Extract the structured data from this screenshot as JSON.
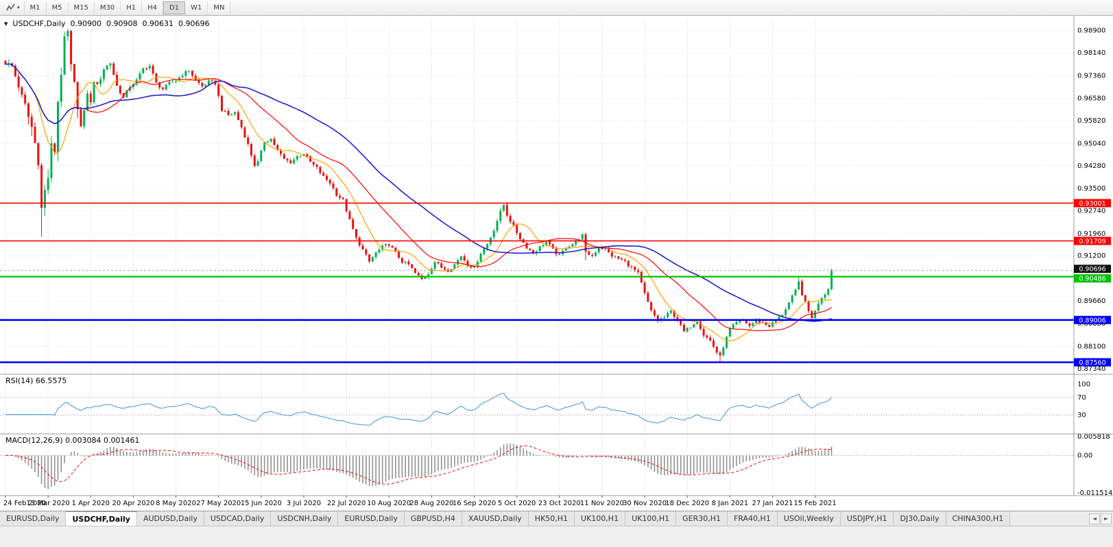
{
  "toolbar": {
    "timeframes": [
      "M1",
      "M5",
      "M15",
      "M30",
      "H1",
      "H4",
      "D1",
      "W1",
      "MN"
    ],
    "active_timeframe": "D1",
    "chart_icon": "line-chart-icon",
    "caret_glyph": "▾"
  },
  "header": {
    "caret_glyph": "▼",
    "symbol": "USDCHF,Daily",
    "open": "0.90900",
    "high": "0.90908",
    "low": "0.90631",
    "close": "0.90696"
  },
  "indicators": {
    "rsi_label": "RSI(14) 66.5575",
    "macd_label": "MACD(12,26,9) 0.003084 0.001461"
  },
  "tabs": {
    "items": [
      "EURUSD,Daily",
      "USDCHF,Daily",
      "AUDUSD,Daily",
      "USDCAD,Daily",
      "USDCNH,Daily",
      "EURUSD,Daily",
      "GBPUSD,H4",
      "XAUUSD,Daily",
      "HK50,H1",
      "UK100,H1",
      "UK100,H1",
      "GER30,H1",
      "FRA40,H1",
      "USOil,Weekly",
      "USDJPY,H1",
      "DJ30,Daily",
      "CHINA300,H1"
    ],
    "active_index": 1,
    "scroll_left_glyph": "◄",
    "scroll_right_glyph": "►"
  },
  "chart_data": {
    "type": "candlestick",
    "symbol": "USDCHF",
    "timeframe": "Daily",
    "ohlc_current": {
      "open": 0.909,
      "high": 0.90908,
      "low": 0.90631,
      "close": 0.90696
    },
    "ylim": [
      0.8715,
      0.9922
    ],
    "price_axis_ticks": [
      0.989,
      0.9814,
      0.9736,
      0.9658,
      0.9582,
      0.9504,
      0.9428,
      0.935,
      0.9274,
      0.9196,
      0.912,
      0.9042,
      0.8966,
      0.8888,
      0.881,
      0.8734
    ],
    "x_ticks": [
      "24 Feb 2020",
      "13 Mar 2020",
      "1 Apr 2020",
      "20 Apr 2020",
      "8 May 2020",
      "27 May 2020",
      "15 Jun 2020",
      "3 Jul 2020",
      "22 Jul 2020",
      "10 Aug 2020",
      "28 Aug 2020",
      "16 Sep 2020",
      "5 Oct 2020",
      "23 Oct 2020",
      "11 Nov 2020",
      "30 Nov 2020",
      "18 Dec 2020",
      "8 Jan 2021",
      "27 Jan 2021",
      "15 Feb 2021"
    ],
    "bars_per_tick": 13,
    "bar_count": 253,
    "bar_spacing": 4.78,
    "first_bar_x": 8,
    "last_close": 0.90696,
    "up_color": "#00b050",
    "down_color": "#e81010",
    "price_anchors": [
      [
        0,
        0.978
      ],
      [
        2,
        0.9768
      ],
      [
        4,
        0.97
      ],
      [
        6,
        0.963
      ],
      [
        8,
        0.956
      ],
      [
        10,
        0.945
      ],
      [
        11,
        0.928
      ],
      [
        12,
        0.934
      ],
      [
        13,
        0.939
      ],
      [
        14,
        0.949
      ],
      [
        15,
        0.948
      ],
      [
        16,
        0.965
      ],
      [
        17,
        0.975
      ],
      [
        18,
        0.985
      ],
      [
        19,
        0.988
      ],
      [
        20,
        0.976
      ],
      [
        21,
        0.97
      ],
      [
        22,
        0.964
      ],
      [
        23,
        0.956
      ],
      [
        24,
        0.961
      ],
      [
        25,
        0.968
      ],
      [
        26,
        0.964
      ],
      [
        27,
        0.972
      ],
      [
        28,
        0.97
      ],
      [
        30,
        0.976
      ],
      [
        32,
        0.978
      ],
      [
        34,
        0.97
      ],
      [
        36,
        0.966
      ],
      [
        38,
        0.97
      ],
      [
        40,
        0.972
      ],
      [
        42,
        0.976
      ],
      [
        44,
        0.977
      ],
      [
        46,
        0.971
      ],
      [
        48,
        0.969
      ],
      [
        50,
        0.971
      ],
      [
        52,
        0.972
      ],
      [
        54,
        0.974
      ],
      [
        56,
        0.9755
      ],
      [
        58,
        0.972
      ],
      [
        60,
        0.97
      ],
      [
        62,
        0.9715
      ],
      [
        64,
        0.971
      ],
      [
        66,
        0.962
      ],
      [
        68,
        0.96
      ],
      [
        70,
        0.961
      ],
      [
        72,
        0.956
      ],
      [
        74,
        0.95
      ],
      [
        76,
        0.943
      ],
      [
        77,
        0.944
      ],
      [
        79,
        0.951
      ],
      [
        81,
        0.952
      ],
      [
        83,
        0.948
      ],
      [
        85,
        0.945
      ],
      [
        87,
        0.944
      ],
      [
        89,
        0.946
      ],
      [
        91,
        0.947
      ],
      [
        93,
        0.944
      ],
      [
        95,
        0.942
      ],
      [
        97,
        0.939
      ],
      [
        99,
        0.937
      ],
      [
        101,
        0.933
      ],
      [
        103,
        0.931
      ],
      [
        105,
        0.924
      ],
      [
        107,
        0.918
      ],
      [
        109,
        0.914
      ],
      [
        111,
        0.91
      ],
      [
        113,
        0.913
      ],
      [
        115,
        0.915
      ],
      [
        117,
        0.916
      ],
      [
        119,
        0.913
      ],
      [
        121,
        0.91
      ],
      [
        123,
        0.909
      ],
      [
        125,
        0.906
      ],
      [
        127,
        0.904
      ],
      [
        129,
        0.906
      ],
      [
        131,
        0.91
      ],
      [
        133,
        0.908
      ],
      [
        135,
        0.907
      ],
      [
        137,
        0.909
      ],
      [
        139,
        0.912
      ],
      [
        141,
        0.909
      ],
      [
        143,
        0.908
      ],
      [
        145,
        0.913
      ],
      [
        147,
        0.916
      ],
      [
        149,
        0.921
      ],
      [
        151,
        0.927
      ],
      [
        152,
        0.9295
      ],
      [
        153,
        0.926
      ],
      [
        155,
        0.922
      ],
      [
        157,
        0.918
      ],
      [
        159,
        0.915
      ],
      [
        161,
        0.913
      ],
      [
        163,
        0.915
      ],
      [
        165,
        0.917
      ],
      [
        167,
        0.914
      ],
      [
        169,
        0.912
      ],
      [
        171,
        0.915
      ],
      [
        173,
        0.916
      ],
      [
        175,
        0.918
      ],
      [
        176,
        0.919
      ],
      [
        177,
        0.913
      ],
      [
        179,
        0.912
      ],
      [
        181,
        0.915
      ],
      [
        183,
        0.914
      ],
      [
        185,
        0.912
      ],
      [
        187,
        0.911
      ],
      [
        189,
        0.91
      ],
      [
        191,
        0.908
      ],
      [
        193,
        0.906
      ],
      [
        195,
        0.899
      ],
      [
        197,
        0.893
      ],
      [
        199,
        0.89
      ],
      [
        201,
        0.891
      ],
      [
        203,
        0.893
      ],
      [
        205,
        0.89
      ],
      [
        207,
        0.886
      ],
      [
        209,
        0.888
      ],
      [
        211,
        0.89
      ],
      [
        213,
        0.885
      ],
      [
        215,
        0.883
      ],
      [
        217,
        0.879
      ],
      [
        218,
        0.8775
      ],
      [
        219,
        0.881
      ],
      [
        221,
        0.887
      ],
      [
        223,
        0.889
      ],
      [
        225,
        0.89
      ],
      [
        227,
        0.888
      ],
      [
        229,
        0.89
      ],
      [
        231,
        0.889
      ],
      [
        233,
        0.888
      ],
      [
        235,
        0.89
      ],
      [
        237,
        0.892
      ],
      [
        239,
        0.896
      ],
      [
        241,
        0.9
      ],
      [
        242,
        0.903
      ],
      [
        243,
        0.899
      ],
      [
        244,
        0.896
      ],
      [
        245,
        0.893
      ],
      [
        246,
        0.891
      ],
      [
        247,
        0.893
      ],
      [
        248,
        0.896
      ],
      [
        249,
        0.898
      ],
      [
        250,
        0.899
      ],
      [
        251,
        0.901
      ],
      [
        252,
        0.90696
      ]
    ],
    "wick_highs": {
      "19": 0.9895,
      "152": 0.9296,
      "176": 0.919,
      "242": 0.9046,
      "252": 0.9073
    },
    "wick_lows": {
      "11": 0.9185,
      "177": 0.9105,
      "218": 0.8757
    },
    "moving_averages": [
      {
        "name": "MA-fast",
        "period": 10,
        "color": "#ffa000"
      },
      {
        "name": "MA-medium",
        "period": 25,
        "color": "#ff0000"
      },
      {
        "name": "MA-slow",
        "period": 50,
        "color": "#2020cc"
      }
    ],
    "hlines": [
      {
        "price": 0.93001,
        "label": "0.93001",
        "color": "#ff0000",
        "width": 1.6,
        "tag_dy": 0
      },
      {
        "price": 0.91709,
        "label": "0.91709",
        "color": "#ff0000",
        "width": 1.6,
        "tag_dy": 0
      },
      {
        "price": 0.90486,
        "label": "0.90486",
        "color": "#00c000",
        "width": 2.2,
        "tag_dy": 2.5
      },
      {
        "price": 0.89006,
        "label": "0.89006",
        "color": "#0000ff",
        "width": 2.6,
        "tag_dy": 0
      },
      {
        "price": 0.8756,
        "label": "0.87560",
        "color": "#0000ff",
        "width": 2.6,
        "tag_dy": 0
      }
    ],
    "current_price": {
      "value": 0.90696,
      "label": "0.90696",
      "tag_color": "#111111"
    },
    "rsi": {
      "period": 14,
      "value": 66.5575,
      "levels": [
        100,
        70,
        30
      ],
      "color": "#4a9fd8"
    },
    "macd": {
      "fast": 12,
      "slow": 26,
      "signal": 9,
      "value": 0.003084,
      "signal_value": 0.001461,
      "axis_labels": [
        "0.005818",
        "0.00",
        "-0.011514"
      ],
      "hist_color": "#909090",
      "signal_color": "#ff0000"
    }
  }
}
